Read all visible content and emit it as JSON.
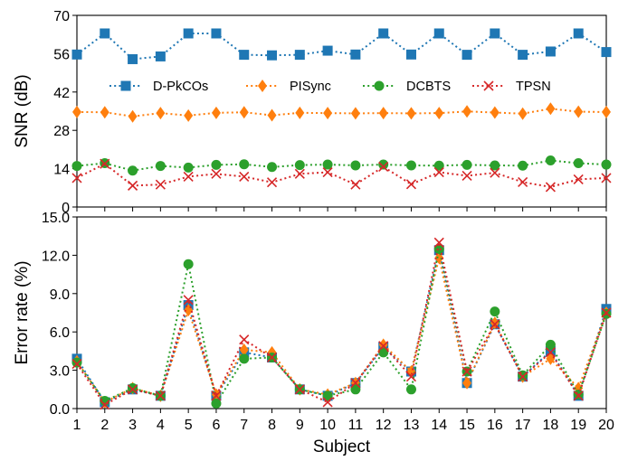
{
  "chart_data": [
    {
      "type": "line",
      "panel": "top",
      "xlabel": "",
      "ylabel": "SNR (dB)",
      "ylim": [
        0,
        70
      ],
      "yticks": [
        "0",
        "14",
        "28",
        "42",
        "56",
        "70"
      ],
      "x": [
        1,
        2,
        3,
        4,
        5,
        6,
        7,
        8,
        9,
        10,
        11,
        12,
        13,
        14,
        15,
        16,
        17,
        18,
        19,
        20
      ],
      "xticks": [
        "1",
        "2",
        "3",
        "4",
        "5",
        "6",
        "7",
        "8",
        "9",
        "10",
        "11",
        "12",
        "13",
        "14",
        "15",
        "16",
        "17",
        "18",
        "19",
        "20"
      ],
      "grid": false,
      "legend": "upper-middle, one row",
      "series": [
        {
          "name": "D-PkCOs",
          "color": "#1f77b4",
          "marker": "square",
          "values": [
            55.7,
            63.4,
            54.0,
            55.0,
            63.4,
            63.4,
            55.6,
            55.4,
            55.6,
            57.1,
            55.7,
            63.4,
            55.7,
            63.4,
            55.6,
            63.4,
            55.6,
            56.8,
            63.4,
            56.6
          ]
        },
        {
          "name": "PISync",
          "color": "#ff7f0e",
          "marker": "diamond",
          "values": [
            34.7,
            34.6,
            33.1,
            34.3,
            33.4,
            34.4,
            34.6,
            33.5,
            34.4,
            34.3,
            34.2,
            34.3,
            34.2,
            34.3,
            34.9,
            34.5,
            34.1,
            35.9,
            34.8,
            34.7
          ]
        },
        {
          "name": "DCBTS",
          "color": "#2ca02c",
          "marker": "circle",
          "values": [
            15.0,
            16.0,
            13.3,
            15.0,
            14.4,
            15.4,
            15.6,
            14.6,
            15.3,
            15.5,
            15.2,
            15.5,
            15.2,
            15.1,
            15.4,
            15.2,
            15.1,
            17.0,
            16.0,
            15.5
          ]
        },
        {
          "name": "TPSN",
          "color": "#d62728",
          "marker": "x",
          "values": [
            10.6,
            15.8,
            7.8,
            8.2,
            11.1,
            12.1,
            11.1,
            9.0,
            12.1,
            12.7,
            8.2,
            14.7,
            8.3,
            12.7,
            11.4,
            12.5,
            9.1,
            7.3,
            10.1,
            10.6
          ]
        }
      ]
    },
    {
      "type": "line",
      "panel": "bottom",
      "xlabel": "Subject",
      "ylabel": "Error rate (%)",
      "ylim": [
        0,
        15
      ],
      "yticks": [
        "0.0",
        "3.0",
        "6.0",
        "9.0",
        "12.0",
        "15.0"
      ],
      "x": [
        1,
        2,
        3,
        4,
        5,
        6,
        7,
        8,
        9,
        10,
        11,
        12,
        13,
        14,
        15,
        16,
        17,
        18,
        19,
        20
      ],
      "xticks": [
        "1",
        "2",
        "3",
        "4",
        "5",
        "6",
        "7",
        "8",
        "9",
        "10",
        "11",
        "12",
        "13",
        "14",
        "15",
        "16",
        "17",
        "18",
        "19",
        "20"
      ],
      "grid": false,
      "series": [
        {
          "name": "D-PkCOs",
          "color": "#1f77b4",
          "marker": "square",
          "values": [
            3.9,
            0.5,
            1.5,
            1.0,
            8.1,
            1.0,
            4.4,
            4.0,
            1.5,
            1.0,
            2.0,
            4.8,
            2.9,
            12.4,
            2.0,
            6.6,
            2.5,
            4.5,
            1.0,
            7.8
          ]
        },
        {
          "name": "PISync",
          "color": "#ff7f0e",
          "marker": "diamond",
          "values": [
            3.7,
            0.5,
            1.6,
            1.0,
            7.7,
            1.1,
            4.6,
            4.4,
            1.5,
            1.1,
            2.0,
            5.0,
            2.9,
            11.8,
            2.0,
            6.7,
            2.5,
            3.9,
            1.6,
            7.5
          ]
        },
        {
          "name": "DCBTS",
          "color": "#2ca02c",
          "marker": "circle",
          "values": [
            3.6,
            0.6,
            1.6,
            1.0,
            11.3,
            0.4,
            3.9,
            4.0,
            1.5,
            1.0,
            1.5,
            4.4,
            1.5,
            12.5,
            2.9,
            7.6,
            2.6,
            5.0,
            1.1,
            7.4
          ]
        },
        {
          "name": "TPSN",
          "color": "#d62728",
          "marker": "x",
          "values": [
            3.5,
            0.3,
            1.5,
            1.0,
            8.5,
            1.0,
            5.4,
            4.0,
            1.5,
            0.5,
            2.0,
            4.9,
            2.5,
            13.0,
            2.9,
            6.6,
            2.5,
            4.4,
            1.0,
            7.5
          ]
        }
      ]
    }
  ]
}
